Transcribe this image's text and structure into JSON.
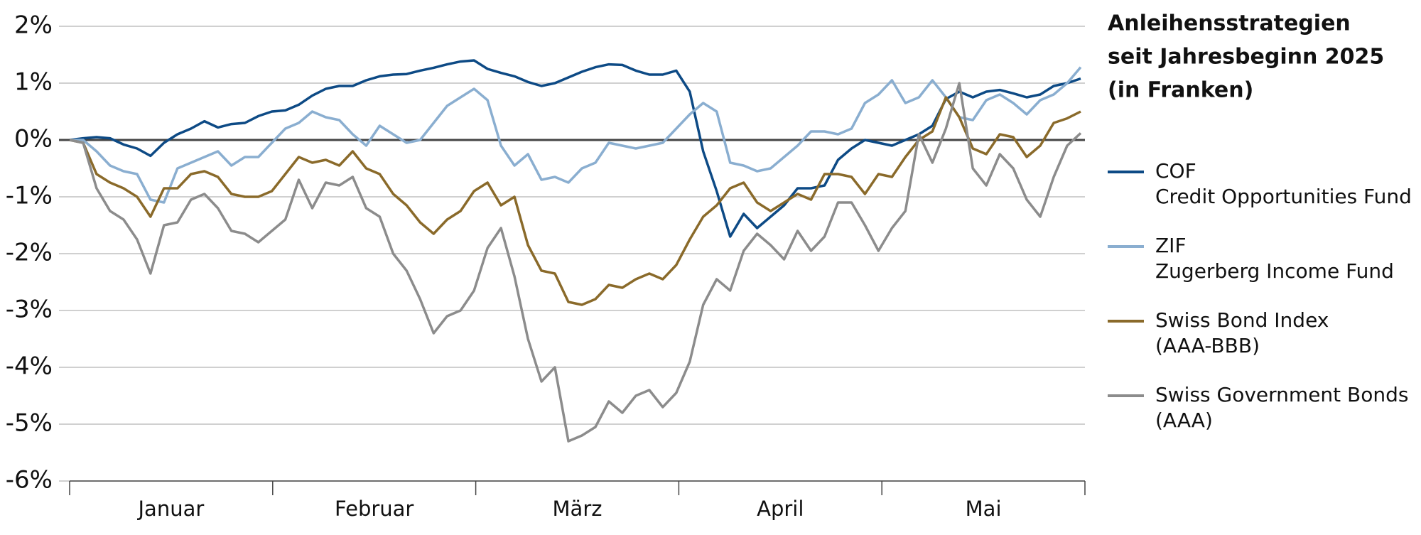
{
  "chart_data": {
    "type": "line",
    "title": [
      "Anleihensstrategien",
      "seit Jahresbeginn 2025",
      "(in Franken)"
    ],
    "months": [
      "Januar",
      "Februar",
      "März",
      "April",
      "Mai"
    ],
    "ylim": [
      -6,
      2
    ],
    "yticks": [
      {
        "value": -6,
        "label": "-6%"
      },
      {
        "value": -5,
        "label": "-5%"
      },
      {
        "value": -4,
        "label": "-4%"
      },
      {
        "value": -3,
        "label": "-3%"
      },
      {
        "value": -2,
        "label": "-2%"
      },
      {
        "value": -1,
        "label": "-1%"
      },
      {
        "value": 0,
        "label": "0%"
      },
      {
        "value": 1,
        "label": "1%"
      },
      {
        "value": 2,
        "label": "2%"
      }
    ],
    "grid": true,
    "legend": "right",
    "series": [
      {
        "name": "COF",
        "description": "Credit Opportunities Fund",
        "color": "#0d4a85",
        "values": [
          0,
          0.03,
          0.05,
          0.03,
          -0.08,
          -0.15,
          -0.28,
          -0.05,
          0.1,
          0.2,
          0.33,
          0.22,
          0.28,
          0.3,
          0.42,
          0.5,
          0.52,
          0.62,
          0.78,
          0.9,
          0.95,
          0.95,
          1.05,
          1.12,
          1.15,
          1.16,
          1.22,
          1.27,
          1.33,
          1.38,
          1.4,
          1.25,
          1.18,
          1.12,
          1.02,
          0.95,
          1.0,
          1.1,
          1.2,
          1.28,
          1.33,
          1.32,
          1.22,
          1.15,
          1.15,
          1.22,
          0.85,
          -0.2,
          -0.9,
          -1.7,
          -1.3,
          -1.55,
          -1.35,
          -1.15,
          -0.85,
          -0.85,
          -0.8,
          -0.35,
          -0.15,
          0.0,
          -0.05,
          -0.1,
          0.0,
          0.1,
          0.25,
          0.72,
          0.85,
          0.75,
          0.85,
          0.88,
          0.82,
          0.75,
          0.8,
          0.95,
          1.0,
          1.08
        ]
      },
      {
        "name": "ZIF",
        "description": "Zugerberg Income Fund",
        "color": "#8aaed0",
        "values": [
          0,
          0,
          -0.2,
          -0.45,
          -0.55,
          -0.6,
          -1.05,
          -1.1,
          -0.5,
          -0.4,
          -0.3,
          -0.2,
          -0.45,
          -0.3,
          -0.3,
          -0.05,
          0.2,
          0.3,
          0.5,
          0.4,
          0.35,
          0.1,
          -0.1,
          0.25,
          0.1,
          -0.05,
          0.0,
          0.3,
          0.6,
          0.75,
          0.9,
          0.7,
          -0.1,
          -0.45,
          -0.25,
          -0.7,
          -0.65,
          -0.75,
          -0.5,
          -0.4,
          -0.05,
          -0.1,
          -0.15,
          -0.1,
          -0.05,
          0.2,
          0.45,
          0.65,
          0.5,
          -0.4,
          -0.45,
          -0.55,
          -0.5,
          -0.3,
          -0.1,
          0.15,
          0.15,
          0.1,
          0.2,
          0.65,
          0.8,
          1.05,
          0.65,
          0.75,
          1.05,
          0.75,
          0.4,
          0.35,
          0.7,
          0.8,
          0.65,
          0.45,
          0.7,
          0.8,
          1.0,
          1.28
        ]
      },
      {
        "name": "Swiss Bond Index",
        "description": "(AAA-BBB)",
        "color": "#8a6a2a",
        "values": [
          0,
          -0.05,
          -0.6,
          -0.75,
          -0.85,
          -1.0,
          -1.35,
          -0.85,
          -0.85,
          -0.6,
          -0.55,
          -0.65,
          -0.95,
          -1.0,
          -1.0,
          -0.9,
          -0.6,
          -0.3,
          -0.4,
          -0.35,
          -0.45,
          -0.2,
          -0.5,
          -0.6,
          -0.95,
          -1.15,
          -1.45,
          -1.65,
          -1.4,
          -1.25,
          -0.9,
          -0.75,
          -1.15,
          -1.0,
          -1.85,
          -2.3,
          -2.35,
          -2.85,
          -2.9,
          -2.8,
          -2.55,
          -2.6,
          -2.45,
          -2.35,
          -2.45,
          -2.2,
          -1.75,
          -1.35,
          -1.15,
          -0.85,
          -0.75,
          -1.1,
          -1.25,
          -1.1,
          -0.95,
          -1.05,
          -0.6,
          -0.6,
          -0.65,
          -0.95,
          -0.6,
          -0.65,
          -0.3,
          0.0,
          0.15,
          0.75,
          0.4,
          -0.15,
          -0.25,
          0.1,
          0.05,
          -0.3,
          -0.1,
          0.3,
          0.38,
          0.5
        ]
      },
      {
        "name": "Swiss Government Bonds",
        "description": "(AAA)",
        "color": "#8c8c8c",
        "values": [
          0,
          -0.05,
          -0.85,
          -1.25,
          -1.4,
          -1.75,
          -2.35,
          -1.5,
          -1.45,
          -1.05,
          -0.95,
          -1.2,
          -1.6,
          -1.65,
          -1.8,
          -1.6,
          -1.4,
          -0.7,
          -1.2,
          -0.75,
          -0.8,
          -0.65,
          -1.2,
          -1.35,
          -2.0,
          -2.3,
          -2.8,
          -3.4,
          -3.1,
          -3.0,
          -2.65,
          -1.9,
          -1.55,
          -2.4,
          -3.5,
          -4.25,
          -4.0,
          -5.3,
          -5.2,
          -5.05,
          -4.6,
          -4.8,
          -4.5,
          -4.4,
          -4.7,
          -4.45,
          -3.9,
          -2.9,
          -2.45,
          -2.65,
          -1.95,
          -1.65,
          -1.85,
          -2.1,
          -1.6,
          -1.95,
          -1.7,
          -1.1,
          -1.1,
          -1.5,
          -1.95,
          -1.55,
          -1.25,
          0.1,
          -0.4,
          0.2,
          1.0,
          -0.5,
          -0.8,
          -0.25,
          -0.5,
          -1.05,
          -1.35,
          -0.65,
          -0.1,
          0.12
        ]
      }
    ]
  }
}
